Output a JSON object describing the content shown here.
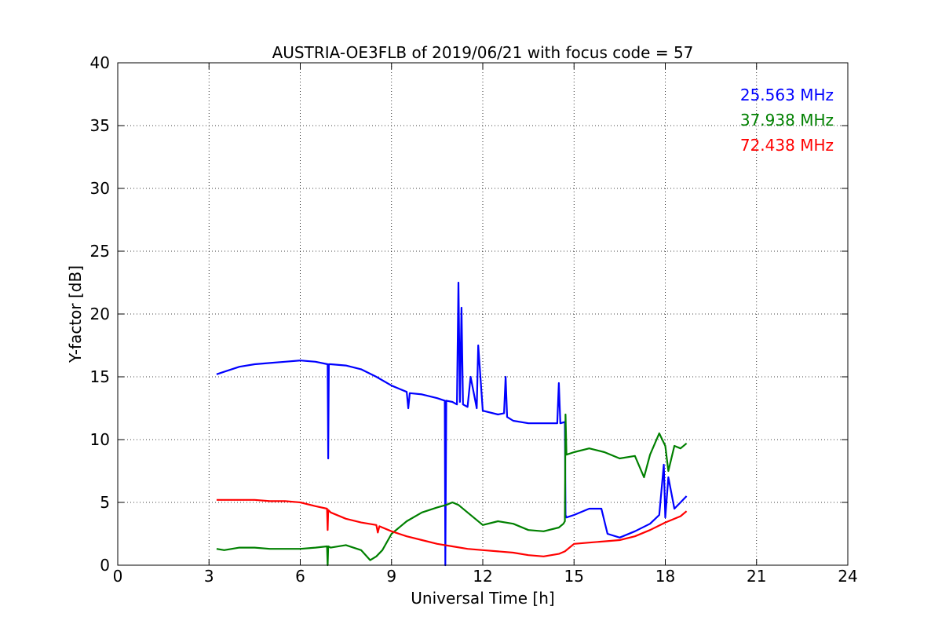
{
  "chart_data": {
    "type": "line",
    "title": "AUSTRIA-OE3FLB of 2019/06/21 with focus code = 57",
    "xlabel": "Universal Time [h]",
    "ylabel": "Y-factor [dB]",
    "xlim": [
      0,
      24
    ],
    "ylim": [
      0,
      40
    ],
    "xticks": [
      0,
      3,
      6,
      9,
      12,
      15,
      18,
      21,
      24
    ],
    "yticks": [
      0,
      5,
      10,
      15,
      20,
      25,
      30,
      35,
      40
    ],
    "xtick_labels": [
      "0",
      "3",
      "6",
      "9",
      "12",
      "15",
      "18",
      "21",
      "24"
    ],
    "ytick_labels": [
      "0",
      "5",
      "10",
      "15",
      "20",
      "25",
      "30",
      "35",
      "40"
    ],
    "grid": true,
    "legend_position": "top-right",
    "series": [
      {
        "name": "25.563 MHz",
        "color": "#0000ff",
        "x": [
          3.25,
          3.5,
          4.0,
          4.5,
          5.0,
          5.5,
          6.0,
          6.5,
          6.9,
          6.92,
          6.94,
          7.0,
          7.5,
          8.0,
          8.5,
          9.0,
          9.5,
          9.55,
          9.6,
          10.0,
          10.5,
          10.75,
          10.77,
          10.8,
          11.0,
          11.15,
          11.2,
          11.25,
          11.3,
          11.35,
          11.5,
          11.6,
          11.8,
          11.85,
          12.0,
          12.5,
          12.7,
          12.75,
          12.8,
          13.0,
          13.5,
          14.0,
          14.45,
          14.5,
          14.55,
          14.7,
          14.72,
          14.75,
          15.0,
          15.5,
          15.9,
          16.1,
          16.5,
          17.0,
          17.5,
          17.8,
          17.95,
          18.0,
          18.1,
          18.3,
          18.5,
          18.7
        ],
        "values": [
          15.2,
          15.4,
          15.8,
          16.0,
          16.1,
          16.2,
          16.3,
          16.2,
          16.0,
          8.5,
          16.0,
          16.0,
          15.9,
          15.6,
          15.0,
          14.3,
          13.8,
          12.5,
          13.7,
          13.6,
          13.3,
          13.1,
          0.0,
          13.1,
          13.0,
          12.8,
          22.5,
          13.0,
          20.5,
          12.8,
          12.6,
          15.0,
          12.5,
          17.5,
          12.3,
          12.0,
          12.1,
          15.0,
          11.8,
          11.5,
          11.3,
          11.3,
          11.3,
          14.5,
          11.3,
          11.4,
          4.0,
          3.8,
          4.0,
          4.5,
          4.5,
          2.5,
          2.2,
          2.7,
          3.3,
          4.0,
          8.0,
          3.8,
          7.0,
          4.5,
          5.0,
          5.5
        ]
      },
      {
        "name": "37.938 MHz",
        "color": "#008000",
        "x": [
          3.25,
          3.5,
          4.0,
          4.5,
          5.0,
          5.5,
          6.0,
          6.5,
          6.88,
          6.9,
          6.92,
          7.0,
          7.5,
          8.0,
          8.3,
          8.5,
          8.7,
          9.0,
          9.5,
          10.0,
          10.5,
          10.8,
          11.0,
          11.2,
          11.5,
          12.0,
          12.5,
          13.0,
          13.5,
          14.0,
          14.5,
          14.65,
          14.7,
          14.72,
          14.75,
          15.0,
          15.5,
          16.0,
          16.5,
          17.0,
          17.3,
          17.5,
          17.8,
          18.0,
          18.1,
          18.3,
          18.5,
          18.7
        ],
        "values": [
          1.3,
          1.2,
          1.4,
          1.4,
          1.3,
          1.3,
          1.3,
          1.4,
          1.5,
          0.0,
          1.5,
          1.4,
          1.6,
          1.2,
          0.4,
          0.7,
          1.2,
          2.5,
          3.5,
          4.2,
          4.6,
          4.8,
          5.0,
          4.8,
          4.2,
          3.2,
          3.5,
          3.3,
          2.8,
          2.7,
          3.0,
          3.3,
          3.5,
          12.0,
          8.8,
          9.0,
          9.3,
          9.0,
          8.5,
          8.7,
          7.0,
          8.8,
          10.5,
          9.5,
          7.5,
          9.5,
          9.3,
          9.7
        ]
      },
      {
        "name": "72.438 MHz",
        "color": "#ff0000",
        "x": [
          3.25,
          3.5,
          4.0,
          4.5,
          5.0,
          5.5,
          6.0,
          6.5,
          6.88,
          6.9,
          6.92,
          7.0,
          7.5,
          8.0,
          8.5,
          8.55,
          8.6,
          9.0,
          9.5,
          10.0,
          10.5,
          11.0,
          11.5,
          12.0,
          12.5,
          13.0,
          13.5,
          14.0,
          14.5,
          14.7,
          15.0,
          15.5,
          16.0,
          16.5,
          17.0,
          17.5,
          18.0,
          18.5,
          18.7
        ],
        "values": [
          5.2,
          5.2,
          5.2,
          5.2,
          5.1,
          5.1,
          5.0,
          4.7,
          4.5,
          2.8,
          4.4,
          4.2,
          3.7,
          3.4,
          3.2,
          2.6,
          3.1,
          2.7,
          2.3,
          2.0,
          1.7,
          1.5,
          1.3,
          1.2,
          1.1,
          1.0,
          0.8,
          0.7,
          0.9,
          1.1,
          1.7,
          1.8,
          1.9,
          2.0,
          2.3,
          2.8,
          3.4,
          3.9,
          4.3
        ]
      }
    ]
  }
}
